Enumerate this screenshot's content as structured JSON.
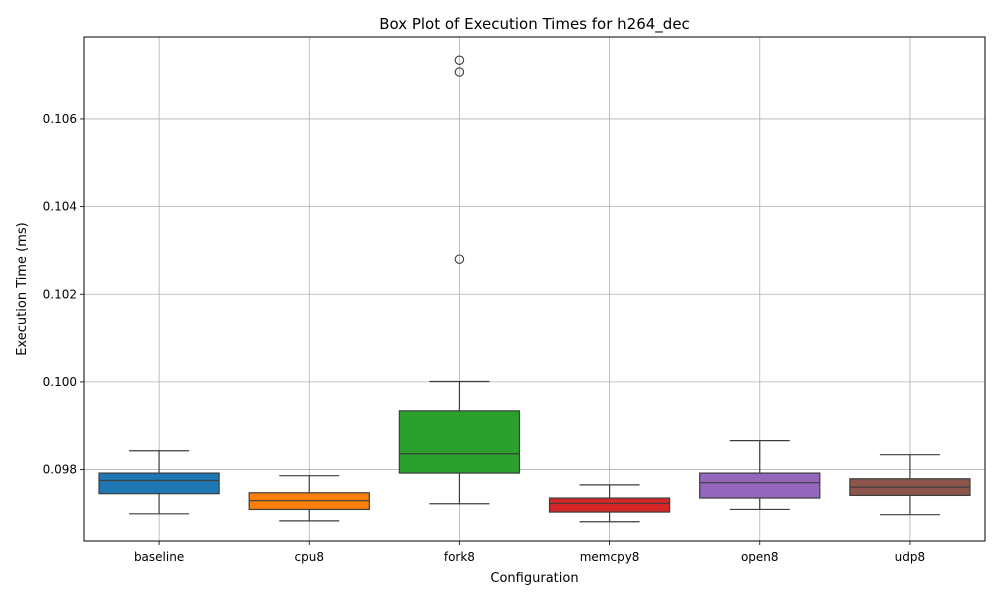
{
  "chart_data": {
    "type": "box",
    "title": "Box Plot of Execution Times for h264_dec",
    "xlabel": "Configuration",
    "ylabel": "Execution Time (ms)",
    "ylim": [
      0.09637,
      0.10787
    ],
    "yticks": [
      0.098,
      0.1,
      0.102,
      0.104,
      0.106
    ],
    "ytick_labels": [
      "0.098",
      "0.100",
      "0.102",
      "0.104",
      "0.106"
    ],
    "grid": true,
    "categories": [
      "baseline",
      "cpu8",
      "fork8",
      "memcpy8",
      "open8",
      "udp8"
    ],
    "colors": [
      "#1f77b4",
      "#ff7f0e",
      "#2ca02c",
      "#d62728",
      "#9467bd",
      "#8c564b"
    ],
    "boxes": [
      {
        "category": "baseline",
        "whisker_low": 0.09699,
        "q1": 0.09745,
        "median": 0.09775,
        "q3": 0.09792,
        "whisker_high": 0.09843,
        "outliers": []
      },
      {
        "category": "cpu8",
        "whisker_low": 0.09683,
        "q1": 0.09709,
        "median": 0.09729,
        "q3": 0.09747,
        "whisker_high": 0.09786,
        "outliers": []
      },
      {
        "category": "fork8",
        "whisker_low": 0.09722,
        "q1": 0.09792,
        "median": 0.09836,
        "q3": 0.09934,
        "whisker_high": 0.10001,
        "outliers": [
          0.1028,
          0.10707,
          0.10734
        ]
      },
      {
        "category": "memcpy8",
        "whisker_low": 0.09681,
        "q1": 0.09703,
        "median": 0.09723,
        "q3": 0.09735,
        "whisker_high": 0.09765,
        "outliers": []
      },
      {
        "category": "open8",
        "whisker_low": 0.09709,
        "q1": 0.09735,
        "median": 0.0977,
        "q3": 0.09792,
        "whisker_high": 0.09866,
        "outliers": []
      },
      {
        "category": "udp8",
        "whisker_low": 0.09697,
        "q1": 0.09741,
        "median": 0.0976,
        "q3": 0.09779,
        "whisker_high": 0.09834,
        "outliers": []
      }
    ]
  }
}
